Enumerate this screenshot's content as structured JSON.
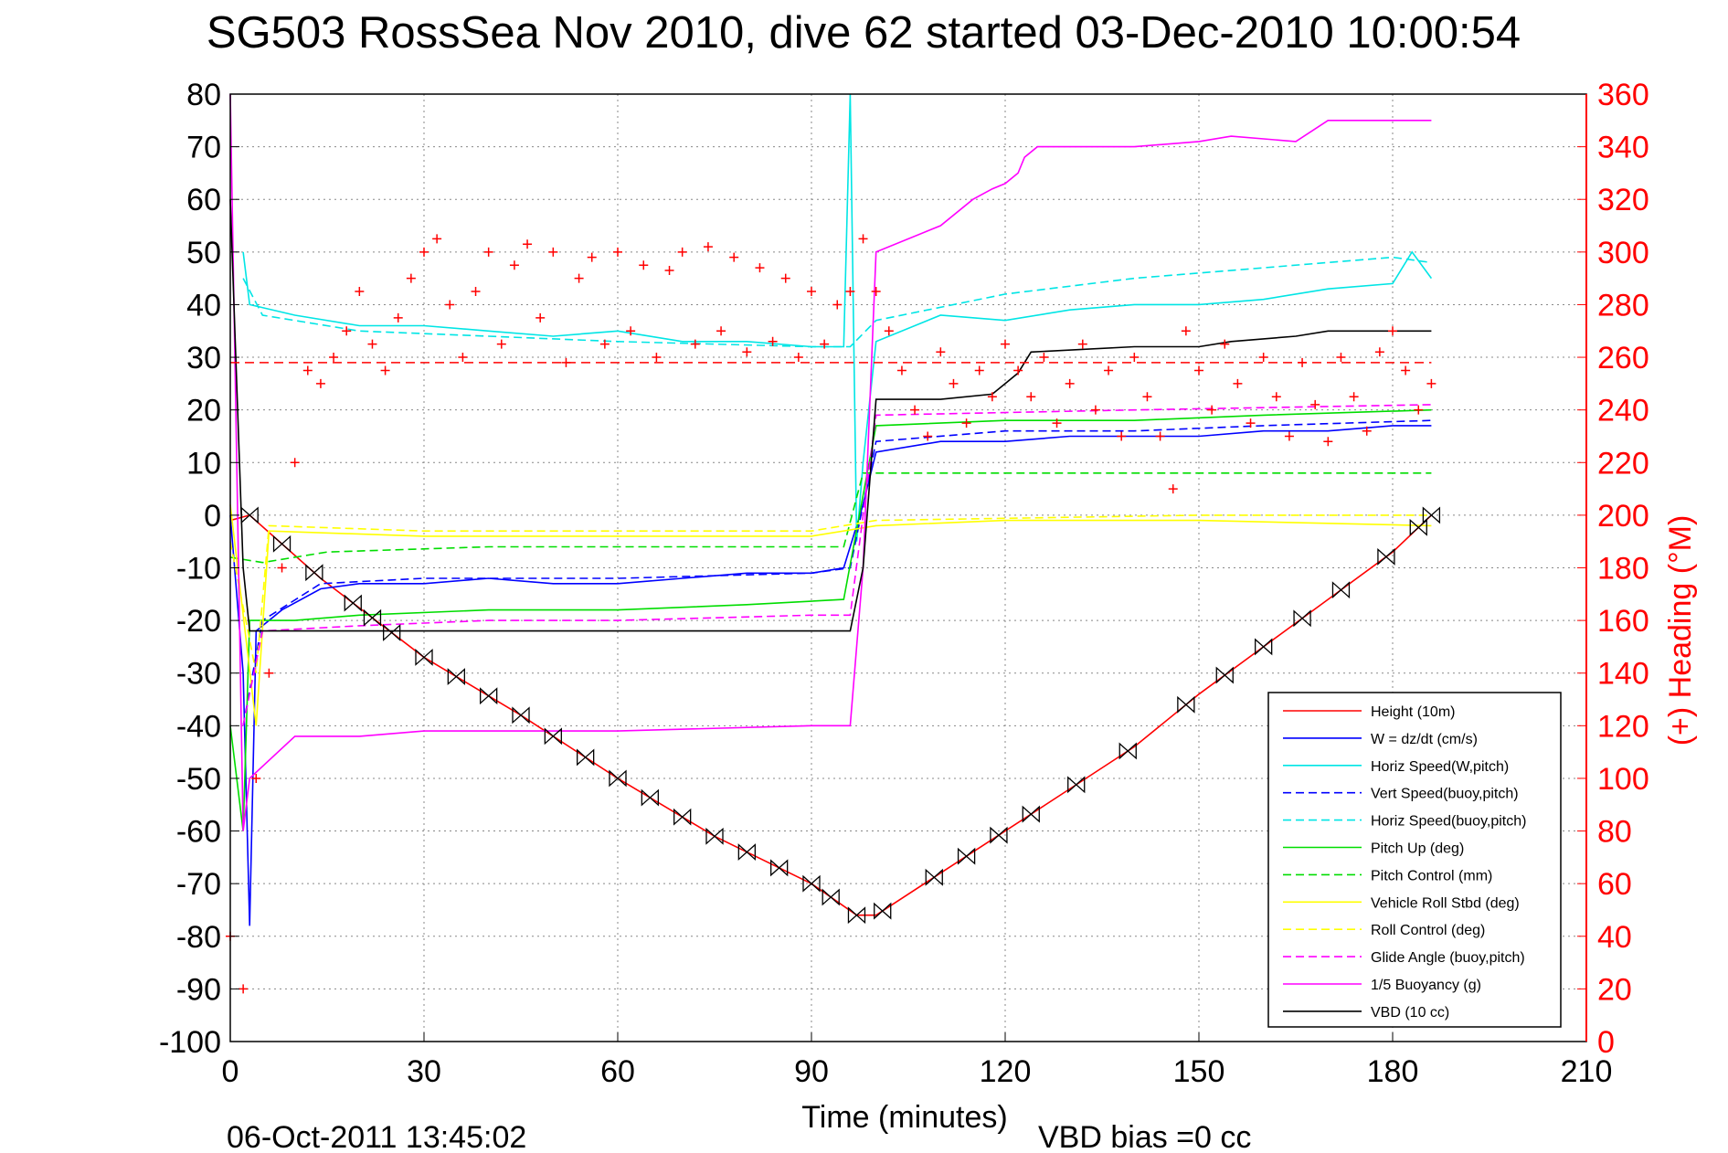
{
  "chart_data": {
    "type": "line",
    "title": "SG503 RossSea Nov 2010, dive 62 started 03-Dec-2010 10:00:54",
    "xlabel": "Time (minutes)",
    "ylabel": "",
    "ylabel_right": "(+) Heading (°M)",
    "xlim": [
      0,
      210
    ],
    "ylim": [
      -100,
      80
    ],
    "ylim_right": [
      0,
      360
    ],
    "grid": true,
    "legend_position": "bottom-right",
    "x_ticks": [
      "0",
      "30",
      "60",
      "90",
      "120",
      "150",
      "180",
      "210"
    ],
    "y_ticks": [
      "-100",
      "-90",
      "-80",
      "-70",
      "-60",
      "-50",
      "-40",
      "-30",
      "-20",
      "-10",
      "0",
      "10",
      "20",
      "30",
      "40",
      "50",
      "60",
      "70",
      "80"
    ],
    "y_ticks_right": [
      "0",
      "20",
      "40",
      "60",
      "80",
      "100",
      "120",
      "140",
      "160",
      "180",
      "200",
      "220",
      "240",
      "260",
      "280",
      "300",
      "320",
      "340",
      "360"
    ],
    "footer_date": "06-Oct-2011 13:45:02",
    "footer_bias": "VBD bias =0 cc",
    "series": [
      {
        "name": "Height (10m)",
        "color": "#ff0000",
        "dash": "solid",
        "points": [
          [
            0,
            -1
          ],
          [
            3,
            0
          ],
          [
            14,
            -12
          ],
          [
            30,
            -27
          ],
          [
            45,
            -38
          ],
          [
            60,
            -50
          ],
          [
            75,
            -61
          ],
          [
            90,
            -70
          ],
          [
            97,
            -76
          ],
          [
            100,
            -76
          ],
          [
            110,
            -68
          ],
          [
            120,
            -60
          ],
          [
            130,
            -52
          ],
          [
            140,
            -44
          ],
          [
            150,
            -34
          ],
          [
            160,
            -25
          ],
          [
            170,
            -16
          ],
          [
            180,
            -7
          ],
          [
            186,
            0
          ]
        ]
      },
      {
        "name": "W = dz/dt (cm/s)",
        "color": "#0000ff",
        "dash": "solid",
        "points": [
          [
            0,
            0
          ],
          [
            2,
            -30
          ],
          [
            3,
            -78
          ],
          [
            4,
            -22
          ],
          [
            8,
            -18
          ],
          [
            14,
            -14
          ],
          [
            20,
            -13
          ],
          [
            30,
            -13
          ],
          [
            40,
            -12
          ],
          [
            50,
            -13
          ],
          [
            60,
            -13
          ],
          [
            70,
            -12
          ],
          [
            80,
            -11
          ],
          [
            90,
            -11
          ],
          [
            95,
            -10
          ],
          [
            98,
            2
          ],
          [
            100,
            12
          ],
          [
            110,
            14
          ],
          [
            120,
            14
          ],
          [
            130,
            15
          ],
          [
            140,
            15
          ],
          [
            150,
            15
          ],
          [
            160,
            16
          ],
          [
            170,
            16
          ],
          [
            180,
            17
          ],
          [
            186,
            17
          ]
        ]
      },
      {
        "name": "Horiz Speed(W,pitch)",
        "color": "#00e5e5",
        "dash": "solid",
        "points": [
          [
            2,
            50
          ],
          [
            3,
            40
          ],
          [
            10,
            38
          ],
          [
            20,
            36
          ],
          [
            30,
            36
          ],
          [
            40,
            35
          ],
          [
            50,
            34
          ],
          [
            60,
            35
          ],
          [
            70,
            33
          ],
          [
            80,
            33
          ],
          [
            90,
            32
          ],
          [
            95,
            32
          ],
          [
            96,
            80
          ],
          [
            97,
            -5
          ],
          [
            98,
            10
          ],
          [
            100,
            33
          ],
          [
            110,
            38
          ],
          [
            120,
            37
          ],
          [
            130,
            39
          ],
          [
            140,
            40
          ],
          [
            150,
            40
          ],
          [
            160,
            41
          ],
          [
            170,
            43
          ],
          [
            180,
            44
          ],
          [
            183,
            50
          ],
          [
            186,
            45
          ]
        ]
      },
      {
        "name": "Vert Speed(buoy,pitch)",
        "color": "#0000ff",
        "dash": "dashed",
        "points": [
          [
            2,
            -40
          ],
          [
            5,
            -20
          ],
          [
            14,
            -13
          ],
          [
            30,
            -12
          ],
          [
            60,
            -12
          ],
          [
            90,
            -11
          ],
          [
            96,
            -10
          ],
          [
            100,
            14
          ],
          [
            120,
            16
          ],
          [
            140,
            16
          ],
          [
            160,
            17
          ],
          [
            186,
            18
          ]
        ]
      },
      {
        "name": "Horiz Speed(buoy,pitch)",
        "color": "#00e5e5",
        "dash": "dashed",
        "points": [
          [
            2,
            45
          ],
          [
            5,
            38
          ],
          [
            20,
            35
          ],
          [
            40,
            34
          ],
          [
            60,
            33
          ],
          [
            90,
            32
          ],
          [
            96,
            32
          ],
          [
            100,
            37
          ],
          [
            120,
            42
          ],
          [
            140,
            45
          ],
          [
            160,
            47
          ],
          [
            180,
            49
          ],
          [
            186,
            48
          ]
        ]
      },
      {
        "name": "Pitch Up (deg)",
        "color": "#00dd00",
        "dash": "solid",
        "points": [
          [
            0,
            -40
          ],
          [
            2,
            -60
          ],
          [
            3,
            -20
          ],
          [
            10,
            -20
          ],
          [
            20,
            -19
          ],
          [
            40,
            -18
          ],
          [
            60,
            -18
          ],
          [
            80,
            -17
          ],
          [
            95,
            -16
          ],
          [
            100,
            17
          ],
          [
            120,
            18
          ],
          [
            140,
            18
          ],
          [
            160,
            19
          ],
          [
            186,
            20
          ]
        ]
      },
      {
        "name": "Pitch Control (mm)",
        "color": "#00dd00",
        "dash": "dashed",
        "points": [
          [
            0,
            -8
          ],
          [
            5,
            -9
          ],
          [
            15,
            -7
          ],
          [
            40,
            -6
          ],
          [
            60,
            -6
          ],
          [
            95,
            -6
          ],
          [
            98,
            8
          ],
          [
            120,
            8
          ],
          [
            150,
            8
          ],
          [
            186,
            8
          ]
        ]
      },
      {
        "name": "Vehicle Roll Stbd (deg)",
        "color": "#ffff00",
        "dash": "solid",
        "points": [
          [
            0,
            2
          ],
          [
            4,
            -40
          ],
          [
            6,
            -3
          ],
          [
            30,
            -4
          ],
          [
            60,
            -4
          ],
          [
            90,
            -4
          ],
          [
            100,
            -2
          ],
          [
            120,
            -1
          ],
          [
            150,
            -1
          ],
          [
            186,
            -2
          ]
        ]
      },
      {
        "name": "Roll Control (deg)",
        "color": "#ffff00",
        "dash": "dashed",
        "points": [
          [
            0,
            -5
          ],
          [
            4,
            -30
          ],
          [
            6,
            -2
          ],
          [
            30,
            -3
          ],
          [
            60,
            -3
          ],
          [
            90,
            -3
          ],
          [
            100,
            -1
          ],
          [
            150,
            0
          ],
          [
            186,
            0
          ]
        ]
      },
      {
        "name": "Glide Angle (buoy,pitch)",
        "color": "#ff00ff",
        "dash": "dashed",
        "points": [
          [
            2,
            -40
          ],
          [
            5,
            -22
          ],
          [
            20,
            -21
          ],
          [
            40,
            -20
          ],
          [
            60,
            -20
          ],
          [
            90,
            -19
          ],
          [
            96,
            -19
          ],
          [
            100,
            19
          ],
          [
            140,
            20
          ],
          [
            186,
            21
          ]
        ]
      },
      {
        "name": "1/5 Buoyancy (g)",
        "color": "#ff00ff",
        "dash": "solid",
        "points": [
          [
            0,
            80
          ],
          [
            2,
            -60
          ],
          [
            3,
            -50
          ],
          [
            10,
            -42
          ],
          [
            20,
            -42
          ],
          [
            30,
            -41
          ],
          [
            40,
            -41
          ],
          [
            60,
            -41
          ],
          [
            90,
            -40
          ],
          [
            96,
            -40
          ],
          [
            98,
            -10
          ],
          [
            100,
            50
          ],
          [
            110,
            55
          ],
          [
            115,
            60
          ],
          [
            118,
            62
          ],
          [
            120,
            63
          ],
          [
            122,
            65
          ],
          [
            123,
            68
          ],
          [
            125,
            70
          ],
          [
            140,
            70
          ],
          [
            150,
            71
          ],
          [
            155,
            72
          ],
          [
            165,
            71
          ],
          [
            170,
            75
          ],
          [
            186,
            75
          ]
        ]
      },
      {
        "name": "VBD (10 cc)",
        "color": "#000000",
        "dash": "solid",
        "points": [
          [
            0,
            60
          ],
          [
            2,
            -10
          ],
          [
            3,
            -22
          ],
          [
            10,
            -22
          ],
          [
            30,
            -22
          ],
          [
            60,
            -22
          ],
          [
            90,
            -22
          ],
          [
            96,
            -22
          ],
          [
            98,
            -10
          ],
          [
            100,
            22
          ],
          [
            110,
            22
          ],
          [
            118,
            23
          ],
          [
            120,
            25
          ],
          [
            122,
            27
          ],
          [
            124,
            31
          ],
          [
            140,
            32
          ],
          [
            150,
            32
          ],
          [
            155,
            33
          ],
          [
            165,
            34
          ],
          [
            170,
            35
          ],
          [
            186,
            35
          ]
        ]
      }
    ],
    "heading_points": [
      [
        0,
        40
      ],
      [
        2,
        20
      ],
      [
        4,
        100
      ],
      [
        6,
        140
      ],
      [
        8,
        180
      ],
      [
        10,
        220
      ],
      [
        12,
        255
      ],
      [
        14,
        250
      ],
      [
        16,
        260
      ],
      [
        18,
        270
      ],
      [
        20,
        285
      ],
      [
        22,
        265
      ],
      [
        24,
        255
      ],
      [
        26,
        275
      ],
      [
        28,
        290
      ],
      [
        30,
        300
      ],
      [
        32,
        305
      ],
      [
        34,
        280
      ],
      [
        36,
        260
      ],
      [
        38,
        285
      ],
      [
        40,
        300
      ],
      [
        42,
        265
      ],
      [
        44,
        295
      ],
      [
        46,
        303
      ],
      [
        48,
        275
      ],
      [
        50,
        300
      ],
      [
        52,
        258
      ],
      [
        54,
        290
      ],
      [
        56,
        298
      ],
      [
        58,
        265
      ],
      [
        60,
        300
      ],
      [
        62,
        270
      ],
      [
        64,
        295
      ],
      [
        66,
        260
      ],
      [
        68,
        293
      ],
      [
        70,
        300
      ],
      [
        72,
        265
      ],
      [
        74,
        302
      ],
      [
        76,
        270
      ],
      [
        78,
        298
      ],
      [
        80,
        262
      ],
      [
        82,
        294
      ],
      [
        84,
        266
      ],
      [
        86,
        290
      ],
      [
        88,
        260
      ],
      [
        90,
        285
      ],
      [
        92,
        265
      ],
      [
        94,
        280
      ],
      [
        96,
        285
      ],
      [
        98,
        305
      ],
      [
        100,
        285
      ],
      [
        102,
        270
      ],
      [
        104,
        255
      ],
      [
        106,
        240
      ],
      [
        108,
        230
      ],
      [
        110,
        262
      ],
      [
        112,
        250
      ],
      [
        114,
        235
      ],
      [
        116,
        255
      ],
      [
        118,
        245
      ],
      [
        120,
        265
      ],
      [
        122,
        255
      ],
      [
        124,
        245
      ],
      [
        126,
        260
      ],
      [
        128,
        235
      ],
      [
        130,
        250
      ],
      [
        132,
        265
      ],
      [
        134,
        240
      ],
      [
        136,
        255
      ],
      [
        138,
        230
      ],
      [
        140,
        260
      ],
      [
        142,
        245
      ],
      [
        144,
        230
      ],
      [
        146,
        210
      ],
      [
        148,
        270
      ],
      [
        150,
        255
      ],
      [
        152,
        240
      ],
      [
        154,
        265
      ],
      [
        156,
        250
      ],
      [
        158,
        235
      ],
      [
        160,
        260
      ],
      [
        162,
        245
      ],
      [
        164,
        230
      ],
      [
        166,
        258
      ],
      [
        168,
        242
      ],
      [
        170,
        228
      ],
      [
        172,
        260
      ],
      [
        174,
        245
      ],
      [
        176,
        232
      ],
      [
        178,
        262
      ],
      [
        180,
        270
      ],
      [
        182,
        255
      ],
      [
        184,
        240
      ],
      [
        186,
        250
      ]
    ],
    "heading_mean": 258,
    "depth_markers": [
      3,
      8,
      13,
      19,
      22,
      25,
      30,
      35,
      40,
      45,
      50,
      55,
      60,
      65,
      70,
      75,
      80,
      85,
      90,
      93,
      97,
      101,
      109,
      114,
      119,
      124,
      131,
      139,
      148,
      154,
      160,
      166,
      172,
      179,
      184,
      186
    ]
  }
}
